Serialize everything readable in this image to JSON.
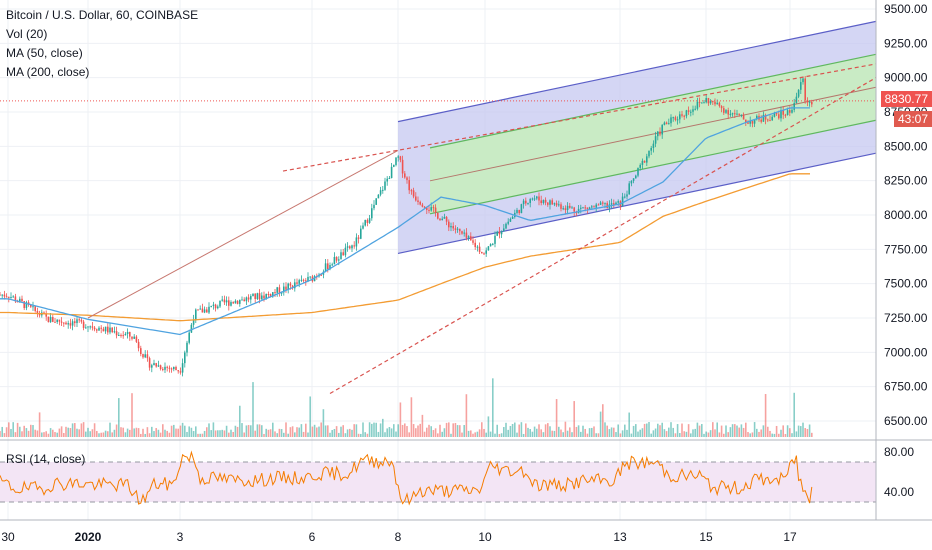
{
  "legend": {
    "title": "Bitcoin / U.S. Dollar, 60, COINBASE",
    "vol": "Vol (20)",
    "ma50": "MA (50, close)",
    "ma200": "MA (200, close)"
  },
  "rsi_label": "RSI (14, close)",
  "price_tags": {
    "last_price": "8830.77",
    "countdown": "43:07"
  },
  "colors": {
    "up_candle": "#26a69a",
    "down_candle": "#ef5350",
    "ma50": "#4fa3e0",
    "ma200": "#f39c33",
    "channel_outer_fill": "#c5c8f0",
    "channel_outer_line": "#5b5fc7",
    "channel_inner_fill": "#c8edc0",
    "channel_inner_line": "#5fb85f",
    "trend_line": "#d9534f",
    "rsi_line": "#f57c00",
    "rsi_band": "#f3e5f5",
    "last_price_tag": "#ef5350"
  },
  "chart_data": [
    {
      "type": "candlestick",
      "title": "Bitcoin / U.S. Dollar, 60, COINBASE",
      "ylim": [
        6400,
        9500
      ],
      "y_ticks": [
        "9500.00",
        "9250.00",
        "9000.00",
        "8750.00",
        "8500.00",
        "8250.00",
        "8000.00",
        "7750.00",
        "7500.00",
        "7250.00",
        "7000.00",
        "6750.00",
        "6500.00"
      ],
      "x_ticks": [
        "30",
        "2020",
        "3",
        "6",
        "8",
        "10",
        "13",
        "15",
        "17"
      ],
      "last_price": 8830.77,
      "approx_close_path": [
        [
          "30",
          7420
        ],
        [
          "31",
          7240
        ],
        [
          "2020",
          7200
        ],
        [
          "2",
          7110
        ],
        [
          "2",
          6920
        ],
        [
          "3",
          6870
        ],
        [
          "3",
          7280
        ],
        [
          "4",
          7360
        ],
        [
          "5",
          7420
        ],
        [
          "6",
          7540
        ],
        [
          "7",
          7790
        ],
        [
          "8",
          8420
        ],
        [
          "8",
          8150
        ],
        [
          "9",
          7980
        ],
        [
          "10",
          7720
        ],
        [
          "10",
          7880
        ],
        [
          "11",
          8130
        ],
        [
          "12",
          8040
        ],
        [
          "13",
          8080
        ],
        [
          "14",
          8650
        ],
        [
          "15",
          8840
        ],
        [
          "16",
          8680
        ],
        [
          "17",
          8750
        ],
        [
          "17",
          9010
        ],
        [
          "17",
          8830
        ]
      ],
      "ma50_path": [
        [
          "30",
          7390
        ],
        [
          "2020",
          7240
        ],
        [
          "3",
          7130
        ],
        [
          "6",
          7530
        ],
        [
          "8",
          7910
        ],
        [
          "9",
          8130
        ],
        [
          "10",
          8070
        ],
        [
          "11",
          7960
        ],
        [
          "13",
          8080
        ],
        [
          "14",
          8240
        ],
        [
          "15",
          8560
        ],
        [
          "16",
          8680
        ],
        [
          "17",
          8780
        ]
      ],
      "ma200_path": [
        [
          "30",
          7290
        ],
        [
          "2020",
          7270
        ],
        [
          "3",
          7230
        ],
        [
          "6",
          7290
        ],
        [
          "8",
          7380
        ],
        [
          "9",
          7500
        ],
        [
          "10",
          7620
        ],
        [
          "11",
          7700
        ],
        [
          "13",
          7800
        ],
        [
          "14",
          7990
        ],
        [
          "15",
          8100
        ],
        [
          "16",
          8200
        ],
        [
          "17",
          8300
        ]
      ]
    },
    {
      "type": "line",
      "title": "RSI (14, close)",
      "ylim": [
        25,
        90
      ],
      "y_ticks": [
        "80.00",
        "40.00"
      ],
      "bands": [
        70,
        30
      ]
    }
  ]
}
